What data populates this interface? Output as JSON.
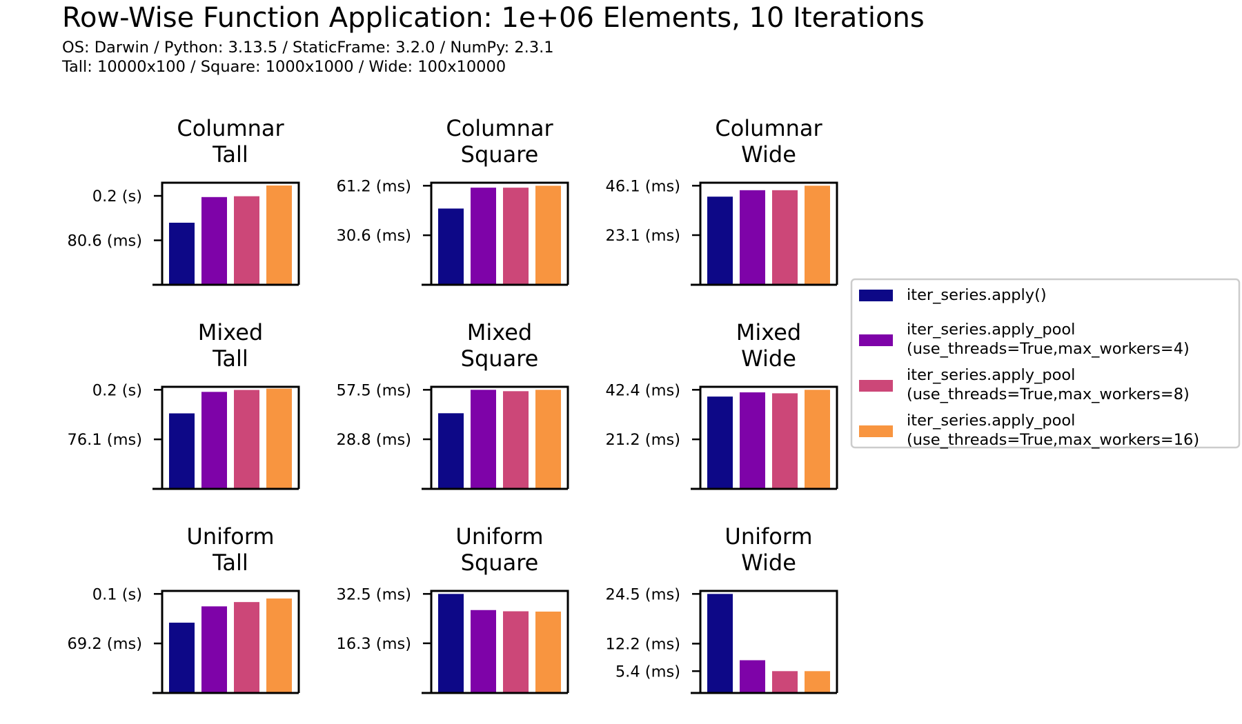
{
  "figure": {
    "title": "Row-Wise Function Application: 1e+06 Elements, 10 Iterations",
    "subtitle_line1": "OS: Darwin / Python: 3.13.5 / StaticFrame: 3.2.0 / NumPy: 2.3.1",
    "subtitle_line2": "Tall: 10000x100 / Square: 1000x1000 / Wide: 100x10000"
  },
  "legend": {
    "placement": "right",
    "entries": [
      {
        "line1": "iter_series.apply()",
        "line2": "",
        "color": "#0d0887"
      },
      {
        "line1": "iter_series.apply_pool",
        "line2": "(use_threads=True,max_workers=4)",
        "color": "#7e03a8"
      },
      {
        "line1": "iter_series.apply_pool",
        "line2": "(use_threads=True,max_workers=8)",
        "color": "#cc4778"
      },
      {
        "line1": "iter_series.apply_pool",
        "line2": "(use_threads=True,max_workers=16)",
        "color": "#f89540"
      }
    ]
  },
  "chart_data": [
    {
      "type": "bar",
      "title_line1": "Columnar",
      "title_line2": "Tall",
      "values": [
        0.1125,
        0.159,
        0.1605,
        0.18
      ],
      "ylim": [
        0,
        0.185
      ],
      "ticks": [
        {
          "value": 0.1612,
          "label": "0.2 (s)"
        },
        {
          "value": 0.0806,
          "label": "80.6 (ms)"
        }
      ]
    },
    {
      "type": "bar",
      "title_line1": "Columnar",
      "title_line2": "Square",
      "values": [
        0.0471,
        0.06,
        0.06,
        0.0612
      ],
      "ylim": [
        0,
        0.06305
      ],
      "ticks": [
        {
          "value": 0.0612,
          "label": "61.2 (ms)"
        },
        {
          "value": 0.0306,
          "label": "30.6 (ms)"
        }
      ]
    },
    {
      "type": "bar",
      "title_line1": "Columnar",
      "title_line2": "Wide",
      "values": [
        0.041,
        0.044,
        0.044,
        0.0461
      ],
      "ylim": [
        0,
        0.04748
      ],
      "ticks": [
        {
          "value": 0.0461,
          "label": "46.1 (ms)"
        },
        {
          "value": 0.0231,
          "label": "23.1 (ms)"
        }
      ]
    },
    {
      "type": "bar",
      "title_line1": "Mixed",
      "title_line2": "Tall",
      "values": [
        0.116,
        0.149,
        0.152,
        0.154
      ],
      "ylim": [
        0,
        0.15677
      ],
      "ticks": [
        {
          "value": 0.1522,
          "label": "0.2 (s)"
        },
        {
          "value": 0.0761,
          "label": "76.1 (ms)"
        }
      ]
    },
    {
      "type": "bar",
      "title_line1": "Mixed",
      "title_line2": "Square",
      "values": [
        0.0439,
        0.0575,
        0.0567,
        0.0575
      ],
      "ylim": [
        0,
        0.05923
      ],
      "ticks": [
        {
          "value": 0.0575,
          "label": "57.5 (ms)"
        },
        {
          "value": 0.0288,
          "label": "28.8 (ms)"
        }
      ]
    },
    {
      "type": "bar",
      "title_line1": "Mixed",
      "title_line2": "Wide",
      "values": [
        0.0395,
        0.0413,
        0.0409,
        0.0424
      ],
      "ylim": [
        0,
        0.04367
      ],
      "ticks": [
        {
          "value": 0.0424,
          "label": "42.4 (ms)"
        },
        {
          "value": 0.0212,
          "label": "21.2 (ms)"
        }
      ]
    },
    {
      "type": "bar",
      "title_line1": "Uniform",
      "title_line2": "Tall",
      "values": [
        0.0982,
        0.121,
        0.127,
        0.132
      ],
      "ylim": [
        0,
        0.14256
      ],
      "ticks": [
        {
          "value": 0.1384,
          "label": "0.1 (s)"
        },
        {
          "value": 0.0692,
          "label": "69.2 (ms)"
        }
      ]
    },
    {
      "type": "bar",
      "title_line1": "Uniform",
      "title_line2": "Square",
      "values": [
        0.0325,
        0.0272,
        0.0268,
        0.0267
      ],
      "ylim": [
        0,
        0.03348
      ],
      "ticks": [
        {
          "value": 0.0325,
          "label": "32.5 (ms)"
        },
        {
          "value": 0.0163,
          "label": "16.3 (ms)"
        }
      ]
    },
    {
      "type": "bar",
      "title_line1": "Uniform",
      "title_line2": "Wide",
      "values": [
        0.0245,
        0.0081,
        0.0054,
        0.0054
      ],
      "ylim": [
        0,
        0.02524
      ],
      "ticks": [
        {
          "value": 0.0245,
          "label": "24.5 (ms)"
        },
        {
          "value": 0.0122,
          "label": "12.2 (ms)"
        },
        {
          "value": 0.0054,
          "label": "5.4 (ms)"
        }
      ]
    }
  ]
}
